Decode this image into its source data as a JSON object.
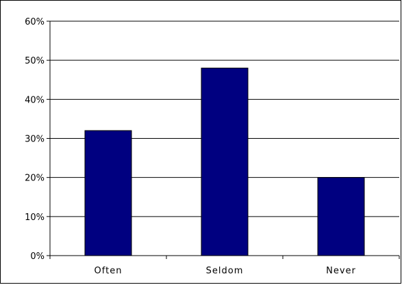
{
  "chart_data": {
    "type": "bar",
    "categories": [
      "Often",
      "Seldom",
      "Never"
    ],
    "values": [
      32,
      48,
      20
    ],
    "y_unit": "%",
    "ylim": [
      0,
      60
    ],
    "y_ticks": [
      0,
      10,
      20,
      30,
      40,
      50,
      60
    ],
    "y_tick_labels": [
      "0%",
      "10%",
      "20%",
      "30%",
      "40%",
      "50%",
      "60%"
    ],
    "title": "",
    "xlabel": "",
    "ylabel": "",
    "grid": "horizontal",
    "legend": "none",
    "colors": {
      "bar_fill": "#000080",
      "bar_stroke": "#000000",
      "axis": "#000000",
      "gridline": "#000000"
    }
  }
}
